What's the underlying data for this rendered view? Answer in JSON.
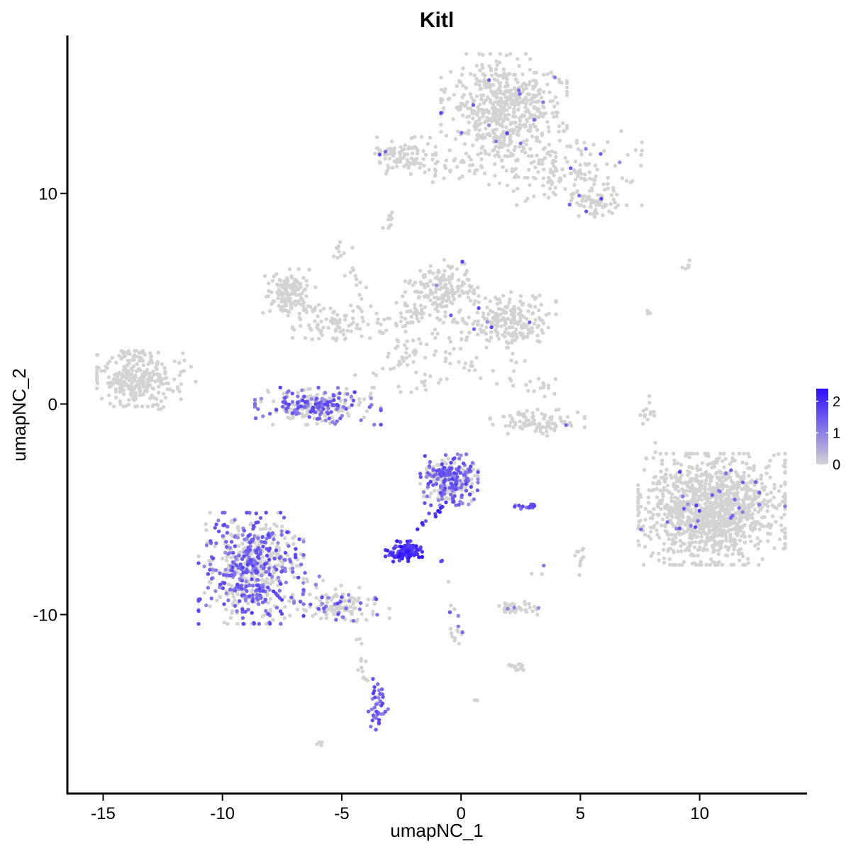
{
  "chart_data": {
    "type": "scatter",
    "title": "Kitl",
    "xlabel": "umapNC_1",
    "ylabel": "umapNC_2",
    "xlim": [
      -16.5,
      14.5
    ],
    "ylim": [
      -18.5,
      17.5
    ],
    "x_ticks": [
      -15,
      -10,
      -5,
      0,
      5,
      10
    ],
    "x_tick_labels": [
      "-15",
      "-10",
      "-5",
      "0",
      "5",
      "10"
    ],
    "y_ticks": [
      -10,
      0,
      10
    ],
    "y_tick_labels": [
      "-10",
      "0",
      "10"
    ],
    "grid": false,
    "legend": {
      "placement": "right",
      "type": "colorbar",
      "min": 0,
      "max": 2.4,
      "ticks": [
        0,
        1,
        2
      ],
      "tick_labels": [
        "0",
        "1",
        "2"
      ],
      "low_color": "#d3d3d3",
      "high_color": "#2a0dff"
    },
    "clusters": [
      {
        "cx": 1.8,
        "cy": 14.2,
        "sx": 1.2,
        "sy": 1.1,
        "n": 520,
        "expr": 0.02
      },
      {
        "cx": 4.5,
        "cy": 11.2,
        "sx": 1.4,
        "sy": 0.8,
        "n": 160,
        "expr": 0.03
      },
      {
        "cx": 5.6,
        "cy": 9.6,
        "sx": 0.5,
        "sy": 0.4,
        "n": 60,
        "expr": 0.02
      },
      {
        "cx": -2.6,
        "cy": 11.8,
        "sx": 0.7,
        "sy": 0.4,
        "n": 90,
        "expr": 0.02
      },
      {
        "cx": -0.5,
        "cy": 11.2,
        "sx": 1.2,
        "sy": 0.3,
        "n": 50,
        "expr": 0.0
      },
      {
        "cx": 1.5,
        "cy": 12.5,
        "sx": 0.3,
        "sy": 1.0,
        "n": 50,
        "expr": 0.0
      },
      {
        "cx": -7.2,
        "cy": 5.3,
        "sx": 0.5,
        "sy": 0.5,
        "n": 140,
        "expr": 0.0
      },
      {
        "cx": -5.3,
        "cy": 3.8,
        "sx": 0.8,
        "sy": 0.4,
        "n": 70,
        "expr": 0.0
      },
      {
        "cx": -0.8,
        "cy": 5.4,
        "sx": 0.7,
        "sy": 0.7,
        "n": 180,
        "expr": 0.02
      },
      {
        "cx": 2.0,
        "cy": 4.0,
        "sx": 0.9,
        "sy": 0.6,
        "n": 210,
        "expr": 0.03
      },
      {
        "cx": -1.8,
        "cy": 3.2,
        "sx": 1.5,
        "sy": 1.2,
        "n": 90,
        "expr": 0.0
      },
      {
        "cx": -13.5,
        "cy": 1.2,
        "sx": 0.8,
        "sy": 0.6,
        "n": 270,
        "expr": 0.0
      },
      {
        "cx": -6.0,
        "cy": -0.1,
        "sx": 1.2,
        "sy": 0.4,
        "n": 260,
        "expr": 0.45
      },
      {
        "cx": 3.2,
        "cy": -0.9,
        "sx": 0.9,
        "sy": 0.3,
        "n": 100,
        "expr": 0.02
      },
      {
        "cx": 3.3,
        "cy": 0.8,
        "sx": 0.3,
        "sy": 0.4,
        "n": 14,
        "expr": 0.0
      },
      {
        "cx": 10.5,
        "cy": -5.0,
        "sx": 1.4,
        "sy": 1.2,
        "n": 1200,
        "expr": 0.02
      },
      {
        "cx": -0.5,
        "cy": -3.6,
        "sx": 0.55,
        "sy": 0.55,
        "n": 260,
        "expr": 0.6
      },
      {
        "cx": -2.4,
        "cy": -7.0,
        "sx": 0.35,
        "sy": 0.22,
        "n": 110,
        "expr": 1.9
      },
      {
        "cx": -8.8,
        "cy": -7.8,
        "sx": 1.0,
        "sy": 1.2,
        "n": 620,
        "expr": 0.45
      },
      {
        "cx": -5.2,
        "cy": -9.6,
        "sx": 1.0,
        "sy": 0.4,
        "n": 100,
        "expr": 0.2
      },
      {
        "cx": 2.3,
        "cy": -9.7,
        "sx": 0.5,
        "sy": 0.15,
        "n": 45,
        "expr": 0.06
      },
      {
        "cx": -3.5,
        "cy": -14.3,
        "sx": 0.2,
        "sy": 0.6,
        "n": 40,
        "expr": 0.85
      },
      {
        "cx": 2.4,
        "cy": -12.5,
        "sx": 0.3,
        "sy": 0.12,
        "n": 16,
        "expr": 0.0
      },
      {
        "cx": 2.8,
        "cy": -4.9,
        "sx": 0.25,
        "sy": 0.08,
        "n": 14,
        "expr": 0.9
      },
      {
        "cx": 5.0,
        "cy": -7.5,
        "sx": 0.1,
        "sy": 0.3,
        "n": 12,
        "expr": 0.0
      },
      {
        "cx": 7.9,
        "cy": -0.5,
        "sx": 0.2,
        "sy": 0.4,
        "n": 14,
        "expr": 0.0
      },
      {
        "cx": -5.2,
        "cy": 7.2,
        "sx": 0.15,
        "sy": 0.3,
        "n": 8,
        "expr": 0.0
      },
      {
        "cx": -3.0,
        "cy": 8.8,
        "sx": 0.2,
        "sy": 0.2,
        "n": 10,
        "expr": 0.0
      },
      {
        "cx": 9.5,
        "cy": 6.6,
        "sx": 0.15,
        "sy": 0.1,
        "n": 5,
        "expr": 0.0
      },
      {
        "cx": -6.0,
        "cy": -16.1,
        "sx": 0.12,
        "sy": 0.08,
        "n": 4,
        "expr": 0.0
      },
      {
        "cx": 0.6,
        "cy": -14.1,
        "sx": 0.1,
        "sy": 0.06,
        "n": 3,
        "expr": 0.0
      }
    ],
    "paths": [
      {
        "from": [
          -0.7,
          -4.8
        ],
        "to": [
          -1.8,
          -5.9
        ],
        "n": 14,
        "jitter": 0.1,
        "expr": 1.8
      },
      {
        "from": [
          -0.5,
          -8.6
        ],
        "to": [
          -0.1,
          -11.7
        ],
        "n": 16,
        "jitter": 0.12,
        "expr": 0.05
      },
      {
        "from": [
          -4.3,
          -11.0
        ],
        "to": [
          -4.0,
          -13.2
        ],
        "n": 14,
        "jitter": 0.1,
        "expr": 0.1
      },
      {
        "from": [
          -7.0,
          -7.5
        ],
        "to": [
          -4.2,
          -9.9
        ],
        "n": 30,
        "jitter": 0.25,
        "expr": 0.25
      },
      {
        "from": [
          -1.0,
          2.6
        ],
        "to": [
          0.6,
          1.8
        ],
        "n": 14,
        "jitter": 0.25,
        "expr": 0.0
      },
      {
        "from": [
          -3.5,
          3.6
        ],
        "to": [
          -1.2,
          4.4
        ],
        "n": 20,
        "jitter": 0.25,
        "expr": 0.0
      },
      {
        "from": [
          -4.8,
          7.4
        ],
        "to": [
          -4.2,
          4.5
        ],
        "n": 16,
        "jitter": 0.2,
        "expr": 0.0
      },
      {
        "from": [
          -6.5,
          5.0
        ],
        "to": [
          -5.5,
          4.2
        ],
        "n": 10,
        "jitter": 0.2,
        "expr": 0.0
      },
      {
        "from": [
          -12.0,
          2.5
        ],
        "to": [
          -11.3,
          1.3
        ],
        "n": 6,
        "jitter": 0.2,
        "expr": 0.0
      },
      {
        "from": [
          -12.2,
          -0.2
        ],
        "to": [
          -12.8,
          -0.1
        ],
        "n": 5,
        "jitter": 0.15,
        "expr": 0.0
      },
      {
        "from": [
          2.0,
          0.8
        ],
        "to": [
          2.3,
          1.6
        ],
        "n": 4,
        "jitter": 0.1,
        "expr": 0.0
      },
      {
        "from": [
          1.8,
          3.0
        ],
        "to": [
          2.5,
          1.8
        ],
        "n": 5,
        "jitter": 0.15,
        "expr": 0.0
      },
      {
        "from": [
          -2.8,
          1.6
        ],
        "to": [
          -2.5,
          2.6
        ],
        "n": 8,
        "jitter": 0.2,
        "expr": 0.0
      },
      {
        "from": [
          -1.6,
          1.4
        ],
        "to": [
          -1.4,
          0.8
        ],
        "n": 6,
        "jitter": 0.12,
        "expr": 0.0
      },
      {
        "from": [
          4.2,
          11.5
        ],
        "to": [
          3.6,
          9.6
        ],
        "n": 10,
        "jitter": 0.2,
        "expr": 0.0
      },
      {
        "from": [
          3.0,
          -8.3
        ],
        "to": [
          3.5,
          -7.7
        ],
        "n": 3,
        "jitter": 0.08,
        "expr": 0.2
      },
      {
        "from": [
          7.5,
          4.8
        ],
        "to": [
          7.9,
          4.3
        ],
        "n": 3,
        "jitter": 0.05,
        "expr": 0.0
      },
      {
        "from": [
          8.1,
          -2.5
        ],
        "to": [
          8.1,
          -1.5
        ],
        "n": 3,
        "jitter": 0.05,
        "expr": 0.0
      },
      {
        "from": [
          -0.9,
          -7.2
        ],
        "to": [
          -0.8,
          -7.5
        ],
        "n": 2,
        "jitter": 0.05,
        "expr": 0.6
      }
    ]
  }
}
